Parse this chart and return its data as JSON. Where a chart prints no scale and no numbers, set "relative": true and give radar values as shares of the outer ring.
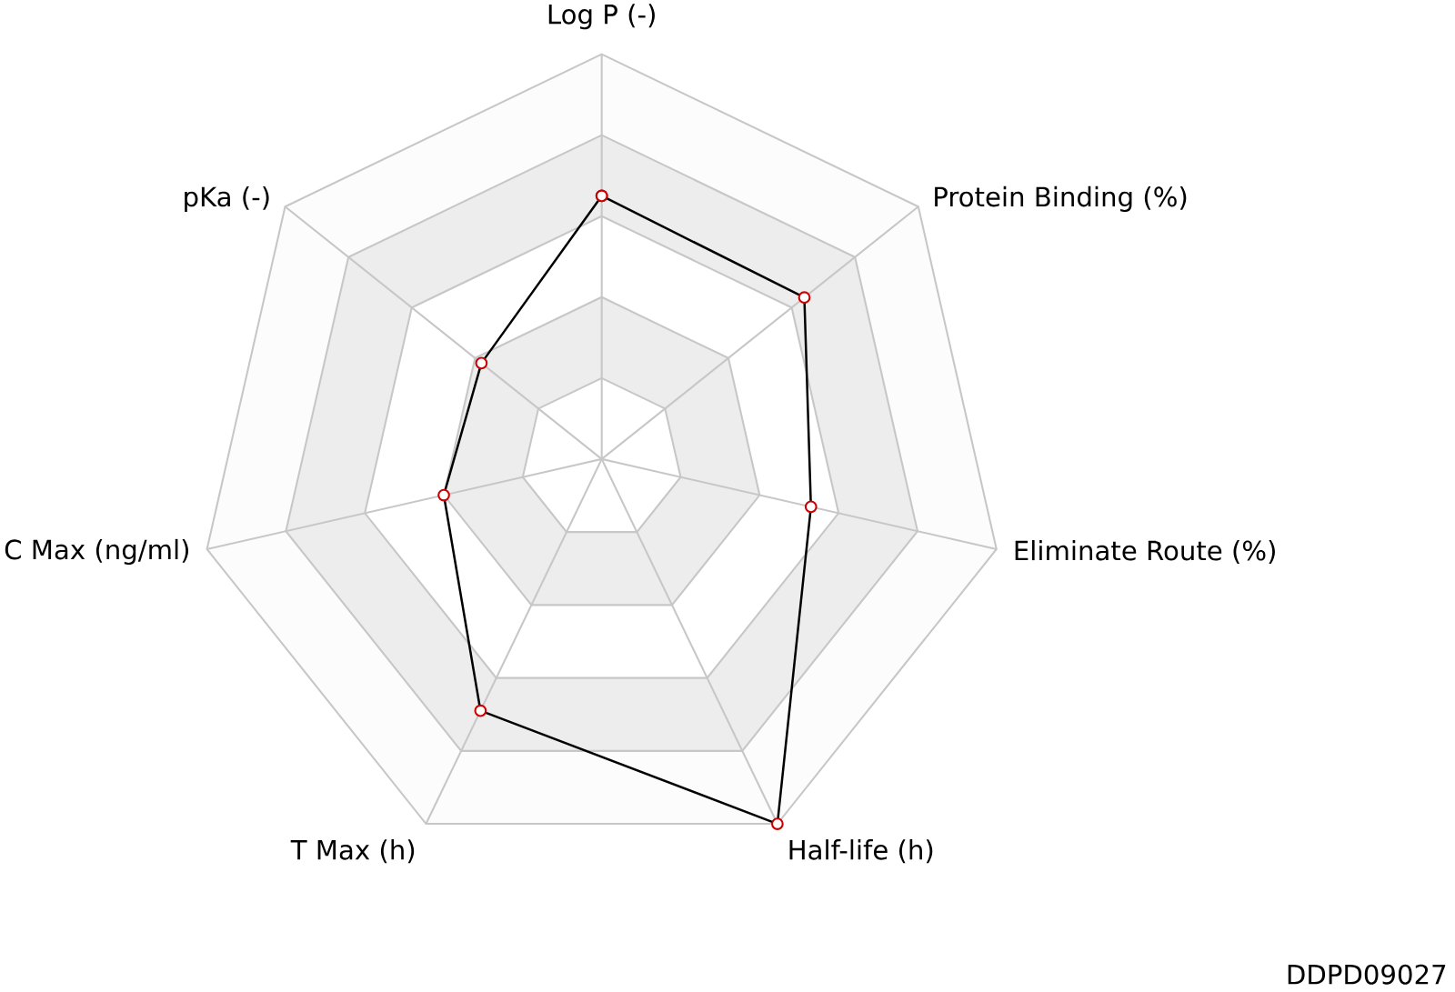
{
  "chart_data": {
    "type": "radar",
    "relative": true,
    "grid": true,
    "marker": "circle",
    "line_style": "solid",
    "categories": [
      "Log P (-)",
      "Protein Binding (%)",
      "Eliminate Route (%)",
      "Half-life (h)",
      "T Max (h)",
      "C Max (ng/ml)",
      "pKa (-)"
    ],
    "series": [
      {
        "color": "#000000",
        "values": [
          0.65,
          0.64,
          0.53,
          1.0,
          0.69,
          0.4,
          0.38
        ]
      }
    ],
    "annotations": [
      "DDPD09027"
    ]
  }
}
